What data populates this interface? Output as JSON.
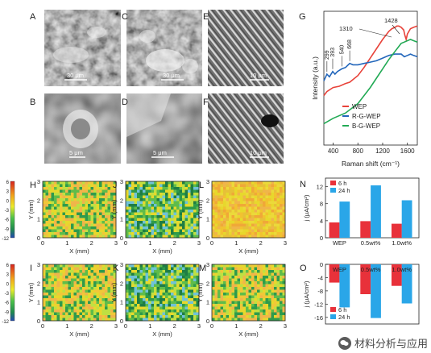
{
  "panels": {
    "A": {
      "letter": "A",
      "scale": "30 μm"
    },
    "B": {
      "letter": "B",
      "scale": "5 μm"
    },
    "C": {
      "letter": "C",
      "scale": "30 μm"
    },
    "D": {
      "letter": "D",
      "scale": "5 μm"
    },
    "E": {
      "letter": "E",
      "scale": "10 μm"
    },
    "F": {
      "letter": "F",
      "scale": "10 μm"
    }
  },
  "maps": {
    "letters": [
      "H",
      "J",
      "L",
      "I",
      "K",
      "M"
    ],
    "xlabel": "X (mm)",
    "ylabel": "Y (mm)",
    "xticks": [
      "0",
      "1",
      "2",
      "3"
    ],
    "yticks": [
      "0",
      "1",
      "2",
      "3"
    ],
    "colorbar_ticks": [
      "6",
      "3",
      "0",
      "-3",
      "-6",
      "-9",
      "-12"
    ]
  },
  "colors": {
    "wep": "#e8433a",
    "rgwep": "#2266bb",
    "bgwep": "#22aa55",
    "bar_6h": "#e8313a",
    "bar_24h": "#2aa6e8"
  },
  "chart_data": [
    {
      "panel": "G",
      "type": "line",
      "xlabel": "Raman shift (cm⁻¹)",
      "ylabel": "Intensity (a.u.)",
      "xticks": [
        "400",
        "800",
        "1200",
        "1600"
      ],
      "xlim": [
        250,
        1760
      ],
      "ylim": [
        0,
        1
      ],
      "annotations": [
        "299",
        "393",
        "540",
        "668",
        "1310",
        "1428"
      ],
      "series": [
        {
          "name": "WEP",
          "x": [
            250,
            300,
            400,
            500,
            600,
            668,
            800,
            900,
            1000,
            1100,
            1200,
            1300,
            1350,
            1400,
            1430,
            1460,
            1500,
            1540,
            1560,
            1580,
            1600,
            1650,
            1700,
            1760
          ],
          "y": [
            0.37,
            0.4,
            0.43,
            0.44,
            0.46,
            0.47,
            0.52,
            0.58,
            0.65,
            0.72,
            0.79,
            0.85,
            0.87,
            0.88,
            0.89,
            0.89,
            0.88,
            0.86,
            0.82,
            0.79,
            0.83,
            0.87,
            0.88,
            0.89
          ]
        },
        {
          "name": "R-G-WEP",
          "x": [
            250,
            299,
            340,
            393,
            430,
            470,
            540,
            600,
            668,
            720,
            800,
            900,
            1000,
            1100,
            1200,
            1300,
            1400,
            1500,
            1550,
            1600,
            1650,
            1700,
            1760
          ],
          "y": [
            0.48,
            0.53,
            0.51,
            0.55,
            0.53,
            0.55,
            0.57,
            0.58,
            0.61,
            0.6,
            0.6,
            0.61,
            0.62,
            0.63,
            0.65,
            0.67,
            0.68,
            0.68,
            0.66,
            0.67,
            0.68,
            0.67,
            0.66
          ]
        },
        {
          "name": "B-G-WEP",
          "x": [
            250,
            400,
            600,
            800,
            900,
            1000,
            1100,
            1200,
            1300,
            1400,
            1450,
            1500,
            1550,
            1600,
            1650,
            1700,
            1760
          ],
          "y": [
            0.16,
            0.2,
            0.24,
            0.31,
            0.37,
            0.43,
            0.5,
            0.57,
            0.64,
            0.7,
            0.73,
            0.76,
            0.77,
            0.78,
            0.79,
            0.78,
            0.77
          ]
        }
      ]
    },
    {
      "panel": "N",
      "type": "bar",
      "categories": [
        "WEP",
        "0.5wt%",
        "1.0wt%"
      ],
      "ylabel": "j (μA/cm²)",
      "yticks": [
        "0",
        "4",
        "8",
        "12"
      ],
      "ylim": [
        0,
        14
      ],
      "series": [
        {
          "name": "6 h",
          "values": [
            3.6,
            3.9,
            3.3
          ]
        },
        {
          "name": "24 h",
          "values": [
            8.5,
            12.3,
            8.8
          ]
        }
      ]
    },
    {
      "panel": "O",
      "type": "bar",
      "categories": [
        "WEP",
        "0.5wt%",
        "1.0wt%"
      ],
      "ylabel": "j (μA/cm²)",
      "yticks": [
        "0",
        "-4",
        "-8",
        "-12",
        "-16"
      ],
      "ylim": [
        -18,
        0
      ],
      "series": [
        {
          "name": "6 h",
          "values": [
            -5.5,
            -9.0,
            -6.5
          ]
        },
        {
          "name": "24 h",
          "values": [
            -13.0,
            -16.2,
            -11.8
          ]
        }
      ]
    }
  ],
  "watermark": {
    "text": "材料分析与应用"
  }
}
